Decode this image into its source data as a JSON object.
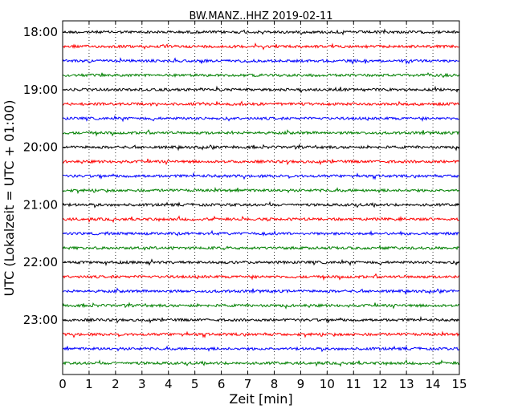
{
  "chart_data": {
    "type": "line",
    "title": "BW.MANZ..HHZ 2019-02-11",
    "xlabel": "Zeit  [min]",
    "ylabel": "UTC (Lokalzeit = UTC + 01:00)",
    "xlim": [
      0,
      15
    ],
    "x_ticks": [
      "0",
      "1",
      "2",
      "3",
      "4",
      "5",
      "6",
      "7",
      "8",
      "9",
      "10",
      "11",
      "12",
      "13",
      "14",
      "15"
    ],
    "y_hour_ticks": [
      "18:00",
      "19:00",
      "20:00",
      "21:00",
      "22:00",
      "23:00"
    ],
    "trace_start": "18:00",
    "trace_interval_minutes": 15,
    "trace_count": 24,
    "trace_colors": [
      "#000000",
      "#ff0000",
      "#0000ff",
      "#008000"
    ],
    "vertical_grid": true,
    "grid_style": "dotted",
    "legend": "none"
  }
}
